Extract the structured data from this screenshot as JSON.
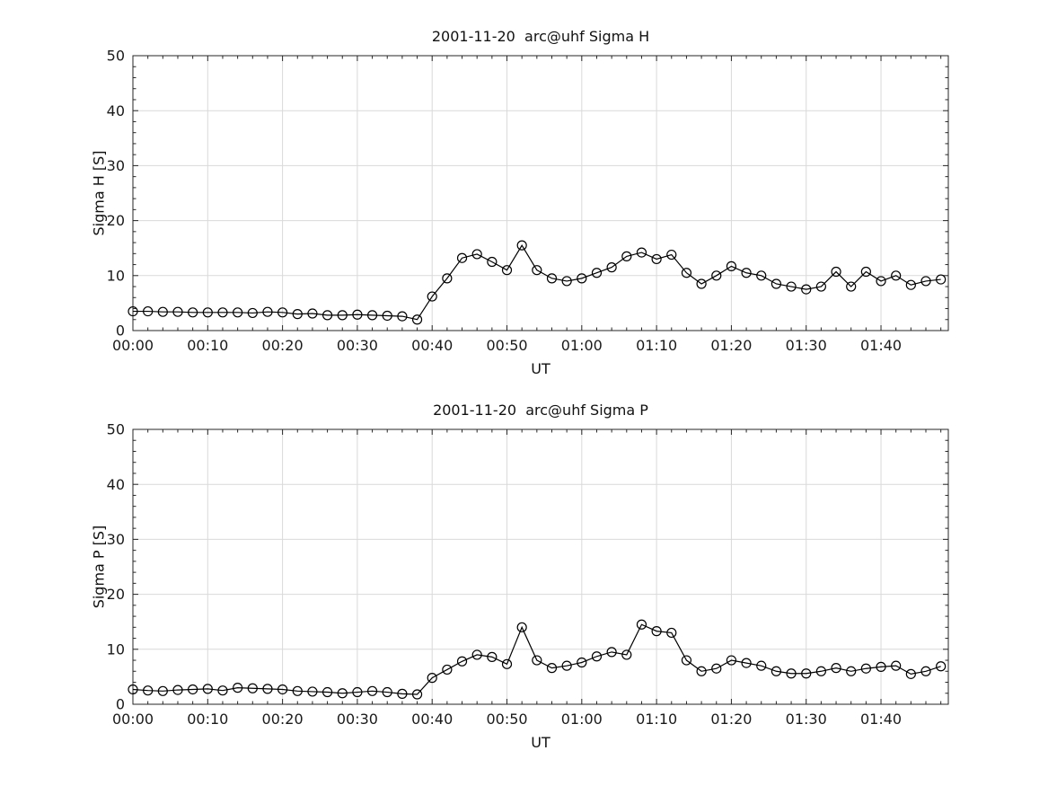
{
  "chart_data": [
    {
      "type": "line",
      "title": "2001-11-20  arc@uhf Sigma H",
      "xlabel": "UT",
      "ylabel": "Sigma H [S]",
      "marker": "circle-open",
      "line_color": "#000000",
      "axis_color": "#262626",
      "grid_color": "#d9d9d9",
      "text_color": "#1a1a1a",
      "grid": true,
      "xlim_minutes": [
        0,
        109
      ],
      "ylim": [
        0,
        50
      ],
      "yticks": [
        0,
        10,
        20,
        30,
        40,
        50
      ],
      "xticks_minutes": [
        0,
        10,
        20,
        30,
        40,
        50,
        60,
        70,
        80,
        90,
        100
      ],
      "xtick_labels": [
        "00:00",
        "00:10",
        "00:20",
        "00:30",
        "00:40",
        "00:50",
        "01:00",
        "01:10",
        "01:20",
        "01:30",
        "01:40"
      ],
      "minor_x_step_minutes": 2,
      "minor_y_step": 2,
      "x_minutes": [
        0,
        2,
        4,
        6,
        8,
        10,
        12,
        14,
        16,
        18,
        20,
        22,
        24,
        26,
        28,
        30,
        32,
        34,
        36,
        38,
        40,
        42,
        44,
        46,
        48,
        50,
        52,
        54,
        56,
        58,
        60,
        62,
        64,
        66,
        68,
        70,
        72,
        74,
        76,
        78,
        80,
        82,
        84,
        86,
        88,
        90,
        92,
        94,
        96,
        98,
        100,
        102,
        104,
        106,
        108
      ],
      "values": [
        3.5,
        3.5,
        3.4,
        3.4,
        3.3,
        3.3,
        3.3,
        3.3,
        3.2,
        3.4,
        3.3,
        3.0,
        3.1,
        2.8,
        2.8,
        2.9,
        2.8,
        2.7,
        2.6,
        2.0,
        6.2,
        9.5,
        13.2,
        13.9,
        12.5,
        11.0,
        15.5,
        11.0,
        9.5,
        9.0,
        9.5,
        10.5,
        11.5,
        13.5,
        14.2,
        13.0,
        13.8,
        10.5,
        8.5,
        10.0,
        11.7,
        10.5,
        10.0,
        8.5,
        8.0,
        7.5,
        8.0,
        10.7,
        8.0,
        10.7,
        9.0,
        10.0,
        8.3,
        9.0,
        9.3
      ]
    },
    {
      "type": "line",
      "title": "2001-11-20  arc@uhf Sigma P",
      "xlabel": "UT",
      "ylabel": "Sigma P [S]",
      "marker": "circle-open",
      "line_color": "#000000",
      "axis_color": "#262626",
      "grid_color": "#d9d9d9",
      "text_color": "#1a1a1a",
      "grid": true,
      "xlim_minutes": [
        0,
        109
      ],
      "ylim": [
        0,
        50
      ],
      "yticks": [
        0,
        10,
        20,
        30,
        40,
        50
      ],
      "xticks_minutes": [
        0,
        10,
        20,
        30,
        40,
        50,
        60,
        70,
        80,
        90,
        100
      ],
      "xtick_labels": [
        "00:00",
        "00:10",
        "00:20",
        "00:30",
        "00:40",
        "00:50",
        "01:00",
        "01:10",
        "01:20",
        "01:30",
        "01:40"
      ],
      "minor_x_step_minutes": 2,
      "minor_y_step": 2,
      "x_minutes": [
        0,
        2,
        4,
        6,
        8,
        10,
        12,
        14,
        16,
        18,
        20,
        22,
        24,
        26,
        28,
        30,
        32,
        34,
        36,
        38,
        40,
        42,
        44,
        46,
        48,
        50,
        52,
        54,
        56,
        58,
        60,
        62,
        64,
        66,
        68,
        70,
        72,
        74,
        76,
        78,
        80,
        82,
        84,
        86,
        88,
        90,
        92,
        94,
        96,
        98,
        100,
        102,
        104,
        106,
        108
      ],
      "values": [
        2.7,
        2.5,
        2.4,
        2.6,
        2.7,
        2.8,
        2.5,
        3.0,
        2.9,
        2.8,
        2.7,
        2.4,
        2.3,
        2.2,
        2.0,
        2.2,
        2.4,
        2.2,
        1.9,
        1.8,
        4.8,
        6.3,
        7.8,
        9.0,
        8.6,
        7.3,
        14.0,
        8.0,
        6.6,
        7.0,
        7.6,
        8.7,
        9.5,
        9.0,
        14.5,
        13.3,
        13.0,
        8.0,
        6.0,
        6.5,
        8.0,
        7.5,
        7.0,
        6.0,
        5.6,
        5.6,
        6.0,
        6.6,
        6.0,
        6.5,
        6.8,
        7.0,
        5.5,
        6.0,
        6.9
      ]
    }
  ]
}
